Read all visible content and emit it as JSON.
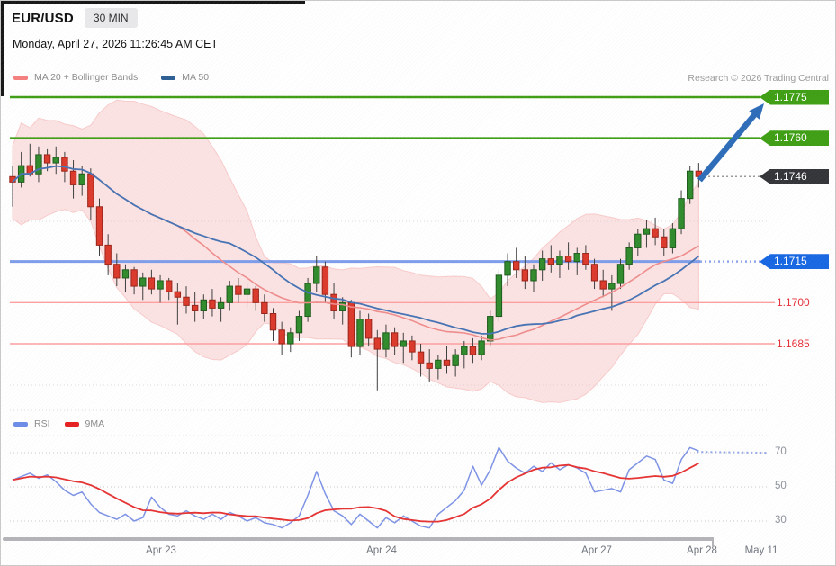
{
  "header": {
    "symbol": "EUR/USD",
    "timeframe": "30 MIN",
    "datetime": "Monday, April 27, 2026 11:26:45 AM CET"
  },
  "attribution": "Research © 2026 Trading Central",
  "legend": {
    "price": [
      {
        "label": "MA 20 + Bollinger Bands",
        "color": "#f57f7f"
      },
      {
        "label": "MA 50",
        "color": "#2d5f94"
      }
    ],
    "rsi": [
      {
        "label": "RSI",
        "color": "#6c8ce8"
      },
      {
        "label": "9MA",
        "color": "#e62020"
      }
    ]
  },
  "x_axis": {
    "labels": [
      "Apr 23",
      "Apr 24",
      "Apr 27",
      "Apr 28",
      "May 11"
    ]
  },
  "rsi_axis": {
    "ticks": [
      "70",
      "50",
      "30"
    ]
  },
  "chart_data": {
    "type": "candlestick",
    "instrument": "EUR/USD",
    "interval": "30 MIN",
    "levels": [
      {
        "price": 1.1775,
        "label": "1.1775",
        "style": "tag-green",
        "line": "solid-green",
        "role": "resistance-target"
      },
      {
        "price": 1.176,
        "label": "1.1760",
        "style": "tag-green",
        "line": "solid-green",
        "role": "resistance"
      },
      {
        "price": 1.1746,
        "label": "1.1746",
        "style": "tag-dark",
        "line": "dotted-gray",
        "role": "last-price"
      },
      {
        "price": 1.1715,
        "label": "1.1715",
        "style": "tag-blue",
        "line": "solid-blue",
        "role": "pivot"
      },
      {
        "price": 1.17,
        "label": "1.1700",
        "style": "text-red",
        "line": "solid-red",
        "role": "support"
      },
      {
        "price": 1.1685,
        "label": "1.1685",
        "style": "text-red",
        "line": "solid-red",
        "role": "support"
      }
    ],
    "arrow": {
      "direction": "up",
      "from_level": 1.1746,
      "to_level": 1.1775,
      "color": "#2c6cb8"
    },
    "candles": [
      [
        1.1746,
        1.175,
        1.1735,
        1.1744
      ],
      [
        1.1744,
        1.1755,
        1.1742,
        1.175
      ],
      [
        1.175,
        1.1758,
        1.1746,
        1.1747
      ],
      [
        1.1747,
        1.1757,
        1.1744,
        1.1754
      ],
      [
        1.1754,
        1.1756,
        1.1748,
        1.1751
      ],
      [
        1.1751,
        1.1757,
        1.1747,
        1.1753
      ],
      [
        1.1753,
        1.1755,
        1.1744,
        1.1748
      ],
      [
        1.1748,
        1.1752,
        1.1738,
        1.1743
      ],
      [
        1.1743,
        1.175,
        1.1739,
        1.1747
      ],
      [
        1.1747,
        1.1749,
        1.173,
        1.1735
      ],
      [
        1.1735,
        1.1738,
        1.1717,
        1.1721
      ],
      [
        1.1721,
        1.1725,
        1.171,
        1.1714
      ],
      [
        1.1714,
        1.1718,
        1.1706,
        1.1709
      ],
      [
        1.1709,
        1.1714,
        1.1704,
        1.1712
      ],
      [
        1.1712,
        1.1713,
        1.1703,
        1.1706
      ],
      [
        1.1706,
        1.1711,
        1.1701,
        1.1709
      ],
      [
        1.1709,
        1.1712,
        1.1703,
        1.1705
      ],
      [
        1.1705,
        1.171,
        1.17,
        1.1708
      ],
      [
        1.1708,
        1.1709,
        1.1701,
        1.1704
      ],
      [
        1.1704,
        1.1707,
        1.1692,
        1.1702
      ],
      [
        1.1702,
        1.1706,
        1.1696,
        1.1699
      ],
      [
        1.1699,
        1.1704,
        1.1693,
        1.1697
      ],
      [
        1.1697,
        1.1703,
        1.1694,
        1.1701
      ],
      [
        1.1701,
        1.1705,
        1.1695,
        1.1698
      ],
      [
        1.1698,
        1.1702,
        1.1693,
        1.17
      ],
      [
        1.17,
        1.1708,
        1.1697,
        1.1706
      ],
      [
        1.1706,
        1.1709,
        1.17,
        1.1703
      ],
      [
        1.1703,
        1.1707,
        1.1698,
        1.1705
      ],
      [
        1.1705,
        1.1706,
        1.1697,
        1.17
      ],
      [
        1.17,
        1.1703,
        1.1693,
        1.1696
      ],
      [
        1.1696,
        1.1698,
        1.1686,
        1.169
      ],
      [
        1.169,
        1.1693,
        1.1681,
        1.1685
      ],
      [
        1.1685,
        1.1691,
        1.1682,
        1.1689
      ],
      [
        1.1689,
        1.1697,
        1.1686,
        1.1695
      ],
      [
        1.1695,
        1.1709,
        1.1693,
        1.1707
      ],
      [
        1.1707,
        1.1717,
        1.1704,
        1.1713
      ],
      [
        1.1713,
        1.1715,
        1.17,
        1.1703
      ],
      [
        1.1703,
        1.1707,
        1.1694,
        1.1697
      ],
      [
        1.1697,
        1.1702,
        1.1692,
        1.17
      ],
      [
        1.17,
        1.1701,
        1.168,
        1.1684
      ],
      [
        1.1684,
        1.1697,
        1.1681,
        1.1694
      ],
      [
        1.1694,
        1.1696,
        1.1684,
        1.1687
      ],
      [
        1.1687,
        1.169,
        1.1668,
        1.1683
      ],
      [
        1.1683,
        1.1692,
        1.168,
        1.1689
      ],
      [
        1.1689,
        1.1691,
        1.1681,
        1.1684
      ],
      [
        1.1684,
        1.1689,
        1.1678,
        1.1686
      ],
      [
        1.1686,
        1.1688,
        1.1679,
        1.1682
      ],
      [
        1.1682,
        1.1685,
        1.1673,
        1.1678
      ],
      [
        1.1678,
        1.1683,
        1.1671,
        1.1676
      ],
      [
        1.1676,
        1.1681,
        1.1672,
        1.1679
      ],
      [
        1.1679,
        1.1684,
        1.1674,
        1.1677
      ],
      [
        1.1677,
        1.1683,
        1.1673,
        1.1681
      ],
      [
        1.1681,
        1.1686,
        1.1676,
        1.1684
      ],
      [
        1.1684,
        1.1687,
        1.1678,
        1.1681
      ],
      [
        1.1681,
        1.1688,
        1.1679,
        1.1686
      ],
      [
        1.1686,
        1.1697,
        1.1684,
        1.1695
      ],
      [
        1.1695,
        1.1712,
        1.1693,
        1.171
      ],
      [
        1.171,
        1.1718,
        1.1706,
        1.1715
      ],
      [
        1.1715,
        1.172,
        1.1709,
        1.1712
      ],
      [
        1.1712,
        1.1717,
        1.1705,
        1.1708
      ],
      [
        1.1708,
        1.1714,
        1.1704,
        1.1712
      ],
      [
        1.1712,
        1.1719,
        1.1708,
        1.1716
      ],
      [
        1.1716,
        1.1721,
        1.1711,
        1.1714
      ],
      [
        1.1714,
        1.1719,
        1.1709,
        1.1717
      ],
      [
        1.1717,
        1.1722,
        1.1712,
        1.1715
      ],
      [
        1.1715,
        1.172,
        1.171,
        1.1718
      ],
      [
        1.1718,
        1.1721,
        1.1712,
        1.1714
      ],
      [
        1.1714,
        1.1716,
        1.1705,
        1.1708
      ],
      [
        1.1708,
        1.1712,
        1.1702,
        1.1705
      ],
      [
        1.1705,
        1.171,
        1.1697,
        1.1707
      ],
      [
        1.1707,
        1.1716,
        1.1705,
        1.1714
      ],
      [
        1.1714,
        1.1722,
        1.1712,
        1.172
      ],
      [
        1.172,
        1.1727,
        1.1717,
        1.1725
      ],
      [
        1.1725,
        1.173,
        1.172,
        1.1727
      ],
      [
        1.1727,
        1.1731,
        1.1721,
        1.1724
      ],
      [
        1.1724,
        1.1727,
        1.1717,
        1.172
      ],
      [
        1.172,
        1.1729,
        1.1718,
        1.1727
      ],
      [
        1.1727,
        1.1741,
        1.1725,
        1.1738
      ],
      [
        1.1738,
        1.175,
        1.1736,
        1.1748
      ],
      [
        1.1748,
        1.1751,
        1.1742,
        1.1746
      ]
    ],
    "indicators": {
      "ma20_bollinger": {
        "period": 20,
        "stdev": 2,
        "band_fill": "#f7baba",
        "line_color": "#ef8c8c"
      },
      "ma50": {
        "period": 50,
        "line_color": "#4673b4"
      },
      "rsi": {
        "period": 14,
        "line_color": "#7d93e6",
        "values": [
          54,
          56,
          58,
          55,
          57,
          53,
          48,
          45,
          47,
          40,
          35,
          33,
          31,
          34,
          30,
          32,
          44,
          38,
          34,
          33,
          36,
          33,
          31,
          34,
          31,
          35,
          33,
          30,
          32,
          29,
          28,
          26,
          29,
          33,
          45,
          59,
          46,
          36,
          33,
          28,
          34,
          30,
          26,
          32,
          29,
          33,
          30,
          27,
          26,
          34,
          38,
          42,
          48,
          62,
          51,
          60,
          73,
          65,
          61,
          58,
          62,
          59,
          64,
          60,
          63,
          61,
          58,
          47,
          48,
          49,
          47,
          60,
          64,
          68,
          66,
          54,
          52,
          66,
          73,
          71
        ]
      },
      "rsi_ma": {
        "period": 9,
        "line_color": "#e63232"
      }
    },
    "rsi_gridlines": [
      70,
      50,
      30
    ]
  }
}
